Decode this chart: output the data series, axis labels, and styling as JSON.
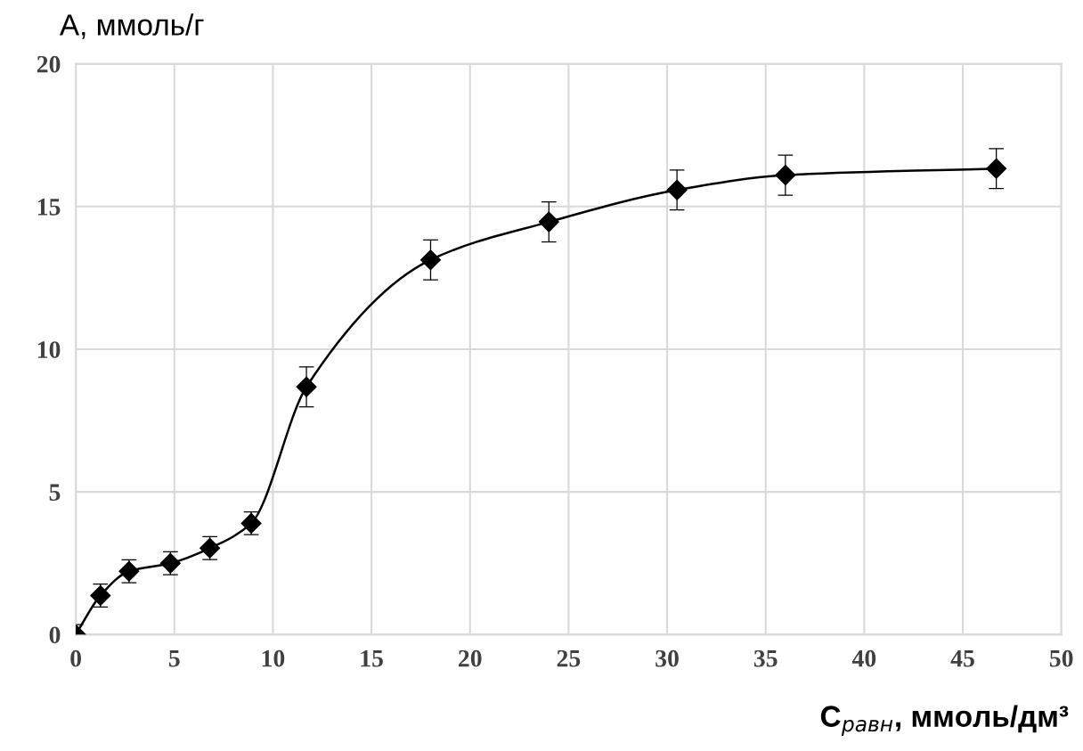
{
  "chart_data": {
    "type": "line",
    "xlabel": "C$_{равн}$, ммоль/дм³",
    "ylabel": "А, ммоль/г",
    "x": [
      0,
      1.25,
      2.7,
      4.8,
      6.8,
      8.9,
      11.7,
      18.0,
      24.0,
      30.5,
      36.0,
      46.7
    ],
    "series": [
      {
        "color": "#000000",
        "values": [
          0,
          1.37,
          2.22,
          2.5,
          3.03,
          3.9,
          8.68,
          13.13,
          14.46,
          15.58,
          16.1,
          16.33
        ],
        "errors": [
          0.35,
          0.4,
          0.4,
          0.4,
          0.4,
          0.4,
          0.7,
          0.7,
          0.7,
          0.7,
          0.7,
          0.7
        ]
      }
    ],
    "xlim": [
      0,
      50
    ],
    "xticks": [
      0,
      5,
      10,
      15,
      20,
      25,
      30,
      35,
      40,
      45,
      50
    ],
    "ylim": [
      0,
      20
    ],
    "yticks": [
      0,
      5,
      10,
      15,
      20
    ],
    "grid": true,
    "marker": "diamond",
    "line_style": "solid"
  }
}
